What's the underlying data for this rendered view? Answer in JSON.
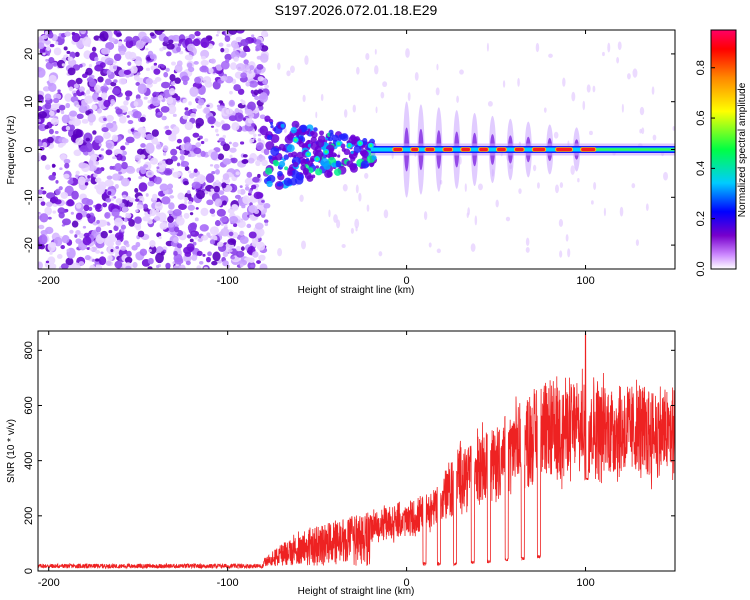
{
  "title": "S197.2026.072.01.18.E29",
  "chart_data": [
    {
      "type": "heatmap",
      "panel": "spectrogram",
      "xlabel": "Height of straight line (km)",
      "ylabel": "Frequency (Hz)",
      "xlim": [
        -206,
        150
      ],
      "ylim": [
        -25,
        25
      ],
      "xticks": [
        -200,
        -100,
        0,
        100
      ],
      "yticks": [
        -20,
        -10,
        0,
        10,
        20
      ],
      "colorbar": {
        "label": "Normalized spectral amplitude",
        "range": [
          0,
          0.95
        ],
        "ticks": [
          0.0,
          0.2,
          0.4,
          0.6,
          0.8
        ],
        "colormap": [
          "#ffffff",
          "#cc88ff",
          "#7700cc",
          "#0000ff",
          "#00ccff",
          "#00ff44",
          "#ffff00",
          "#ff8800",
          "#ff0000",
          "#ff0066"
        ]
      },
      "noise_region_km": [
        -206,
        -78
      ],
      "carrier_frequency_hz": 0,
      "carrier_onset_km": -62,
      "interruptions_km": [
        0,
        8,
        18,
        28,
        38,
        48,
        58,
        68,
        80,
        95
      ]
    },
    {
      "type": "line",
      "panel": "snr",
      "xlabel": "Height of straight line (km)",
      "ylabel": "SNR (10 * v/v)",
      "xlim": [
        -206,
        150
      ],
      "ylim": [
        0,
        870
      ],
      "xticks": [
        -200,
        -100,
        0,
        100
      ],
      "yticks": [
        0,
        200,
        400,
        600,
        800
      ],
      "color": "#ee2222",
      "noise_floor": 18,
      "envelope": [
        {
          "x": -206,
          "y": 20
        },
        {
          "x": -80,
          "y": 25
        },
        {
          "x": -70,
          "y": 80
        },
        {
          "x": -60,
          "y": 130
        },
        {
          "x": -40,
          "y": 165
        },
        {
          "x": -20,
          "y": 200
        },
        {
          "x": 0,
          "y": 230
        },
        {
          "x": 10,
          "y": 250
        },
        {
          "x": 20,
          "y": 330
        },
        {
          "x": 30,
          "y": 430
        },
        {
          "x": 40,
          "y": 470
        },
        {
          "x": 50,
          "y": 490
        },
        {
          "x": 60,
          "y": 560
        },
        {
          "x": 70,
          "y": 610
        },
        {
          "x": 80,
          "y": 630
        },
        {
          "x": 90,
          "y": 640
        },
        {
          "x": 100,
          "y": 650
        },
        {
          "x": 120,
          "y": 640
        },
        {
          "x": 150,
          "y": 620
        }
      ],
      "dropouts": [
        {
          "x": 10,
          "depth": 20
        },
        {
          "x": 18,
          "depth": 20
        },
        {
          "x": 27,
          "depth": 20
        },
        {
          "x": 37,
          "depth": 25
        },
        {
          "x": 46,
          "depth": 30
        },
        {
          "x": 56,
          "depth": 35
        },
        {
          "x": 65,
          "depth": 40
        },
        {
          "x": 74,
          "depth": 45
        },
        {
          "x": 100.5,
          "depth": 330
        }
      ],
      "spike": {
        "x": 100,
        "y": 860
      }
    }
  ]
}
